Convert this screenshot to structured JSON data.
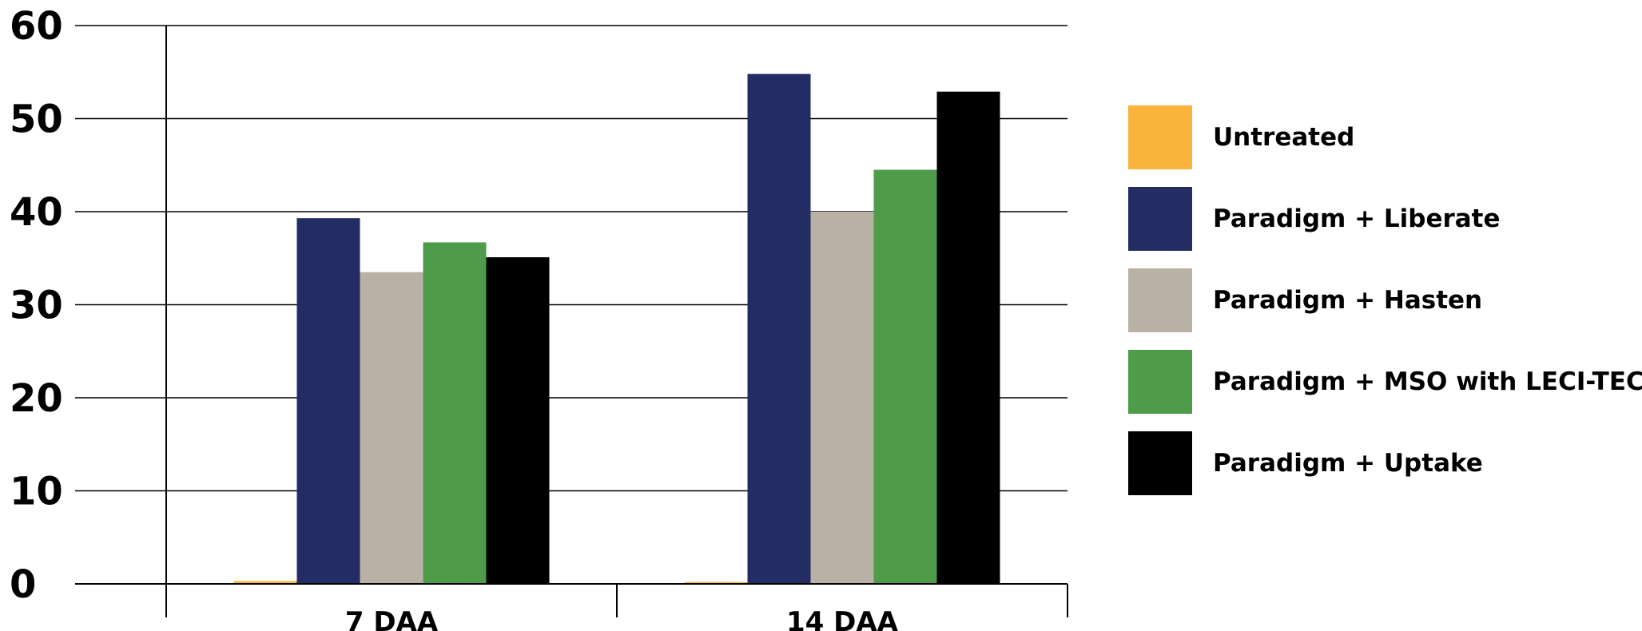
{
  "chart_data": {
    "type": "bar",
    "title": "",
    "xlabel": "",
    "ylabel": "",
    "categories": [
      "7 DAA",
      "14 DAA"
    ],
    "yticks": [
      "0",
      "10",
      "20",
      "30",
      "40",
      "50",
      "60"
    ],
    "ylim": [
      0,
      60
    ],
    "grid": true,
    "legend_position": "right",
    "series": [
      {
        "name": "Untreated",
        "values": [
          0.3,
          0.2
        ],
        "color": "#F9B53B"
      },
      {
        "name": "Paradigm + Liberate",
        "values": [
          39.3,
          54.8
        ],
        "color": "#232D63"
      },
      {
        "name": "Paradigm + Hasten",
        "values": [
          33.5,
          40.0
        ],
        "color": "#BAB1A6"
      },
      {
        "name": "Paradigm + MSO with LECI-TECH",
        "values": [
          36.7,
          44.5
        ],
        "color": "#4E9C49"
      },
      {
        "name": "Paradigm + Uptake",
        "values": [
          35.1,
          52.9
        ],
        "color": "#000000"
      }
    ]
  }
}
